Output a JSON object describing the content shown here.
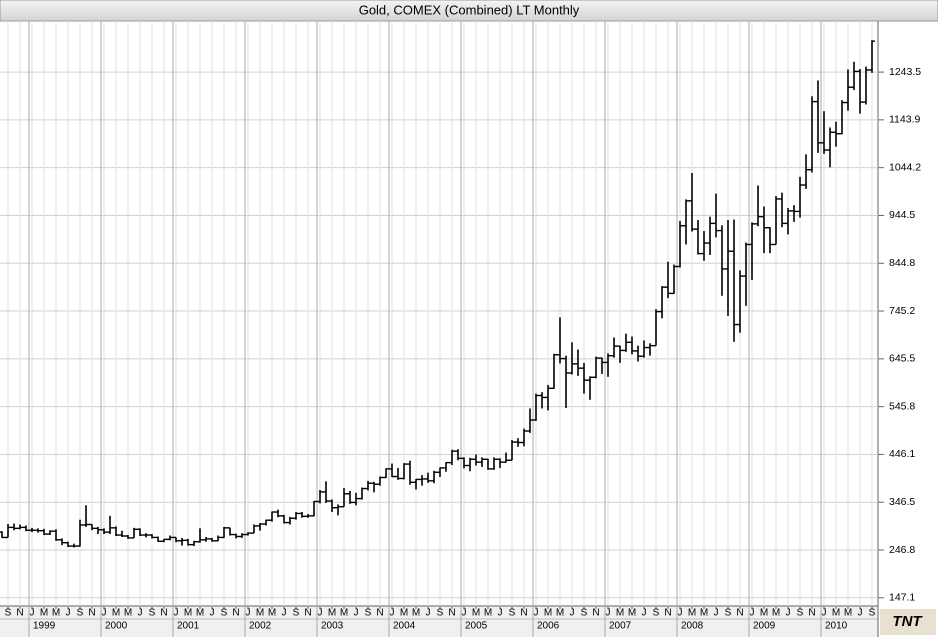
{
  "chart_data": {
    "type": "ohlc",
    "title": "Gold, COMEX (Combined) LT Monthly",
    "logo": "TNT",
    "color": "#000000",
    "grid": true,
    "ylim": [
      130,
      1348
    ],
    "yticks": [
      147.1,
      246.8,
      346.5,
      446.1,
      545.8,
      645.5,
      745.2,
      844.8,
      944.5,
      1044.2,
      1143.9,
      1243.5
    ],
    "categories": [
      "1998-08",
      "1998-09",
      "1998-10",
      "1998-11",
      "1998-12",
      "1999-01",
      "1999-02",
      "1999-03",
      "1999-04",
      "1999-05",
      "1999-06",
      "1999-07",
      "1999-08",
      "1999-09",
      "1999-10",
      "1999-11",
      "1999-12",
      "2000-01",
      "2000-02",
      "2000-03",
      "2000-04",
      "2000-05",
      "2000-06",
      "2000-07",
      "2000-08",
      "2000-09",
      "2000-10",
      "2000-11",
      "2000-12",
      "2001-01",
      "2001-02",
      "2001-03",
      "2001-04",
      "2001-05",
      "2001-06",
      "2001-07",
      "2001-08",
      "2001-09",
      "2001-10",
      "2001-11",
      "2001-12",
      "2002-01",
      "2002-02",
      "2002-03",
      "2002-04",
      "2002-05",
      "2002-06",
      "2002-07",
      "2002-08",
      "2002-09",
      "2002-10",
      "2002-11",
      "2002-12",
      "2003-01",
      "2003-02",
      "2003-03",
      "2003-04",
      "2003-05",
      "2003-06",
      "2003-07",
      "2003-08",
      "2003-09",
      "2003-10",
      "2003-11",
      "2003-12",
      "2004-01",
      "2004-02",
      "2004-03",
      "2004-04",
      "2004-05",
      "2004-06",
      "2004-07",
      "2004-08",
      "2004-09",
      "2004-10",
      "2004-11",
      "2004-12",
      "2005-01",
      "2005-02",
      "2005-03",
      "2005-04",
      "2005-05",
      "2005-06",
      "2005-07",
      "2005-08",
      "2005-09",
      "2005-10",
      "2005-11",
      "2005-12",
      "2006-01",
      "2006-02",
      "2006-03",
      "2006-04",
      "2006-05",
      "2006-06",
      "2006-07",
      "2006-08",
      "2006-09",
      "2006-10",
      "2006-11",
      "2006-12",
      "2007-01",
      "2007-02",
      "2007-03",
      "2007-04",
      "2007-05",
      "2007-06",
      "2007-07",
      "2007-08",
      "2007-09",
      "2007-10",
      "2007-11",
      "2007-12",
      "2008-01",
      "2008-02",
      "2008-03",
      "2008-04",
      "2008-05",
      "2008-06",
      "2008-07",
      "2008-08",
      "2008-09",
      "2008-10",
      "2008-11",
      "2008-12",
      "2009-01",
      "2009-02",
      "2009-03",
      "2009-04",
      "2009-05",
      "2009-06",
      "2009-07",
      "2009-08",
      "2009-09",
      "2009-10",
      "2009-11",
      "2009-12",
      "2010-01",
      "2010-02",
      "2010-03",
      "2010-04",
      "2010-05",
      "2010-06",
      "2010-07",
      "2010-08",
      "2010-09"
    ],
    "open": [
      284,
      273,
      294,
      292,
      294,
      288,
      288,
      287,
      280,
      286,
      268,
      262,
      255,
      255,
      299,
      300,
      292,
      289,
      284,
      293,
      278,
      276,
      272,
      290,
      278,
      278,
      273,
      265,
      269,
      273,
      266,
      267,
      258,
      264,
      268,
      270,
      266,
      273,
      293,
      279,
      275,
      279,
      282,
      297,
      301,
      309,
      326,
      318,
      304,
      313,
      323,
      317,
      318,
      348,
      368,
      349,
      335,
      337,
      364,
      346,
      354,
      375,
      386,
      384,
      398,
      416,
      400,
      396,
      426,
      388,
      394,
      395,
      391,
      409,
      418,
      429,
      453,
      438,
      423,
      436,
      430,
      436,
      416,
      436,
      430,
      434,
      472,
      471,
      495,
      518,
      569,
      565,
      584,
      654,
      646,
      616,
      635,
      626,
      601,
      607,
      647,
      638,
      652,
      672,
      663,
      680,
      662,
      651,
      669,
      673,
      744,
      795,
      782,
      838,
      923,
      975,
      916,
      865,
      887,
      928,
      913,
      833,
      870,
      717,
      818,
      884,
      927,
      942,
      919,
      884,
      979,
      928,
      954,
      953,
      1008,
      1040,
      1182,
      1096,
      1081,
      1118,
      1115,
      1180,
      1212,
      1245,
      1181,
      1248
    ],
    "high": [
      286,
      301,
      302,
      300,
      298,
      293,
      292,
      291,
      288,
      290,
      271,
      264,
      260,
      310,
      340,
      300,
      295,
      292,
      318,
      296,
      287,
      278,
      293,
      292,
      282,
      280,
      275,
      270,
      277,
      273,
      272,
      270,
      266,
      292,
      274,
      272,
      277,
      295,
      293,
      281,
      282,
      284,
      300,
      303,
      310,
      327,
      331,
      320,
      316,
      326,
      326,
      322,
      349,
      372,
      390,
      352,
      342,
      376,
      370,
      366,
      377,
      391,
      389,
      400,
      417,
      427,
      418,
      428,
      433,
      395,
      403,
      408,
      412,
      419,
      430,
      456,
      457,
      440,
      439,
      446,
      440,
      437,
      440,
      438,
      450,
      476,
      480,
      500,
      542,
      573,
      576,
      591,
      656,
      732,
      652,
      680,
      665,
      637,
      609,
      650,
      648,
      657,
      690,
      673,
      698,
      692,
      673,
      684,
      678,
      749,
      797,
      848,
      842,
      933,
      978,
      1033,
      935,
      912,
      942,
      990,
      924,
      935,
      936,
      830,
      888,
      930,
      1007,
      963,
      920,
      985,
      992,
      960,
      966,
      1025,
      1072,
      1193,
      1226,
      1162,
      1128,
      1140,
      1185,
      1249,
      1265,
      1250,
      1255,
      1310
    ],
    "low": [
      272,
      273,
      288,
      290,
      286,
      284,
      283,
      278,
      278,
      266,
      257,
      253,
      252,
      254,
      295,
      288,
      280,
      280,
      280,
      276,
      274,
      270,
      272,
      276,
      273,
      271,
      264,
      263,
      267,
      263,
      256,
      256,
      255,
      262,
      264,
      264,
      265,
      272,
      277,
      271,
      272,
      277,
      282,
      287,
      298,
      306,
      315,
      302,
      300,
      310,
      314,
      314,
      317,
      344,
      345,
      326,
      319,
      337,
      343,
      340,
      352,
      371,
      367,
      381,
      397,
      399,
      393,
      394,
      383,
      373,
      381,
      387,
      386,
      399,
      410,
      424,
      434,
      417,
      411,
      423,
      420,
      414,
      414,
      418,
      429,
      434,
      462,
      463,
      491,
      516,
      542,
      538,
      583,
      636,
      543,
      613,
      610,
      573,
      560,
      605,
      614,
      608,
      648,
      637,
      660,
      655,
      640,
      648,
      652,
      673,
      730,
      772,
      781,
      836,
      884,
      911,
      863,
      850,
      862,
      899,
      777,
      735,
      681,
      700,
      756,
      810,
      922,
      866,
      866,
      884,
      920,
      905,
      931,
      940,
      1000,
      1034,
      1075,
      1073,
      1045,
      1088,
      1114,
      1163,
      1206,
      1157,
      1176,
      1242
    ],
    "close": [
      273,
      294,
      292,
      294,
      288,
      288,
      287,
      280,
      286,
      268,
      262,
      255,
      255,
      299,
      300,
      292,
      289,
      284,
      293,
      278,
      276,
      272,
      290,
      278,
      278,
      273,
      265,
      269,
      273,
      266,
      267,
      258,
      264,
      268,
      270,
      266,
      273,
      293,
      279,
      275,
      279,
      282,
      297,
      301,
      309,
      326,
      318,
      304,
      313,
      323,
      317,
      318,
      348,
      368,
      349,
      335,
      337,
      364,
      346,
      354,
      375,
      386,
      384,
      398,
      416,
      400,
      396,
      426,
      388,
      394,
      395,
      391,
      409,
      418,
      429,
      453,
      438,
      423,
      436,
      430,
      436,
      416,
      436,
      430,
      434,
      472,
      471,
      495,
      518,
      569,
      565,
      584,
      654,
      646,
      616,
      635,
      626,
      601,
      607,
      647,
      638,
      652,
      672,
      663,
      680,
      662,
      651,
      669,
      673,
      744,
      795,
      782,
      838,
      923,
      975,
      916,
      865,
      887,
      928,
      913,
      833,
      870,
      717,
      818,
      884,
      927,
      942,
      919,
      884,
      979,
      928,
      954,
      953,
      1008,
      1040,
      1182,
      1096,
      1081,
      1118,
      1115,
      1180,
      1212,
      1245,
      1181,
      1248,
      1308
    ],
    "xtick_labels": [
      {
        "value": "1998-09",
        "label": "S"
      },
      {
        "value": "1998-11",
        "label": "N"
      },
      {
        "value": "1999-01",
        "label": "J"
      },
      {
        "value": "1999-03",
        "label": "M"
      },
      {
        "value": "1999-05",
        "label": "M"
      },
      {
        "value": "1999-07",
        "label": "J"
      },
      {
        "value": "1999-09",
        "label": "S"
      },
      {
        "value": "1999-11",
        "label": "N"
      },
      {
        "value": "2000-01",
        "label": "J"
      },
      {
        "value": "2000-03",
        "label": "M"
      },
      {
        "value": "2000-05",
        "label": "M"
      },
      {
        "value": "2000-07",
        "label": "J"
      },
      {
        "value": "2000-09",
        "label": "S"
      },
      {
        "value": "2000-11",
        "label": "N"
      },
      {
        "value": "2001-01",
        "label": "J"
      },
      {
        "value": "2001-03",
        "label": "M"
      },
      {
        "value": "2001-05",
        "label": "M"
      },
      {
        "value": "2001-07",
        "label": "J"
      },
      {
        "value": "2001-09",
        "label": "S"
      },
      {
        "value": "2001-11",
        "label": "N"
      },
      {
        "value": "2002-01",
        "label": "J"
      },
      {
        "value": "2002-03",
        "label": "M"
      },
      {
        "value": "2002-05",
        "label": "M"
      },
      {
        "value": "2002-07",
        "label": "J"
      },
      {
        "value": "2002-09",
        "label": "S"
      },
      {
        "value": "2002-11",
        "label": "N"
      },
      {
        "value": "2003-01",
        "label": "J"
      },
      {
        "value": "2003-03",
        "label": "M"
      },
      {
        "value": "2003-05",
        "label": "M"
      },
      {
        "value": "2003-07",
        "label": "J"
      },
      {
        "value": "2003-09",
        "label": "S"
      },
      {
        "value": "2003-11",
        "label": "N"
      },
      {
        "value": "2004-01",
        "label": "J"
      },
      {
        "value": "2004-03",
        "label": "M"
      },
      {
        "value": "2004-05",
        "label": "M"
      },
      {
        "value": "2004-07",
        "label": "J"
      },
      {
        "value": "2004-09",
        "label": "S"
      },
      {
        "value": "2004-11",
        "label": "N"
      },
      {
        "value": "2005-01",
        "label": "J"
      },
      {
        "value": "2005-03",
        "label": "M"
      },
      {
        "value": "2005-05",
        "label": "M"
      },
      {
        "value": "2005-07",
        "label": "J"
      },
      {
        "value": "2005-09",
        "label": "S"
      },
      {
        "value": "2005-11",
        "label": "N"
      },
      {
        "value": "2006-01",
        "label": "J"
      },
      {
        "value": "2006-03",
        "label": "M"
      },
      {
        "value": "2006-05",
        "label": "M"
      },
      {
        "value": "2006-07",
        "label": "J"
      },
      {
        "value": "2006-09",
        "label": "S"
      },
      {
        "value": "2006-11",
        "label": "N"
      },
      {
        "value": "2007-01",
        "label": "J"
      },
      {
        "value": "2007-03",
        "label": "M"
      },
      {
        "value": "2007-05",
        "label": "M"
      },
      {
        "value": "2007-07",
        "label": "J"
      },
      {
        "value": "2007-09",
        "label": "S"
      },
      {
        "value": "2007-11",
        "label": "N"
      },
      {
        "value": "2008-01",
        "label": "J"
      },
      {
        "value": "2008-03",
        "label": "M"
      },
      {
        "value": "2008-05",
        "label": "M"
      },
      {
        "value": "2008-07",
        "label": "J"
      },
      {
        "value": "2008-09",
        "label": "S"
      },
      {
        "value": "2008-11",
        "label": "N"
      },
      {
        "value": "2009-01",
        "label": "J"
      },
      {
        "value": "2009-03",
        "label": "M"
      },
      {
        "value": "2009-05",
        "label": "M"
      },
      {
        "value": "2009-07",
        "label": "J"
      },
      {
        "value": "2009-09",
        "label": "S"
      },
      {
        "value": "2009-11",
        "label": "N"
      },
      {
        "value": "2010-01",
        "label": "J"
      },
      {
        "value": "2010-03",
        "label": "M"
      },
      {
        "value": "2010-05",
        "label": "M"
      },
      {
        "value": "2010-07",
        "label": "J"
      },
      {
        "value": "2010-09",
        "label": "S"
      }
    ],
    "year_labels": [
      {
        "value": "1999-01",
        "label": "1999"
      },
      {
        "value": "2000-01",
        "label": "2000"
      },
      {
        "value": "2001-01",
        "label": "2001"
      },
      {
        "value": "2002-01",
        "label": "2002"
      },
      {
        "value": "2003-01",
        "label": "2003"
      },
      {
        "value": "2004-01",
        "label": "2004"
      },
      {
        "value": "2005-01",
        "label": "2005"
      },
      {
        "value": "2006-01",
        "label": "2006"
      },
      {
        "value": "2007-01",
        "label": "2007"
      },
      {
        "value": "2008-01",
        "label": "2008"
      },
      {
        "value": "2009-01",
        "label": "2009"
      },
      {
        "value": "2010-01",
        "label": "2010"
      }
    ]
  }
}
